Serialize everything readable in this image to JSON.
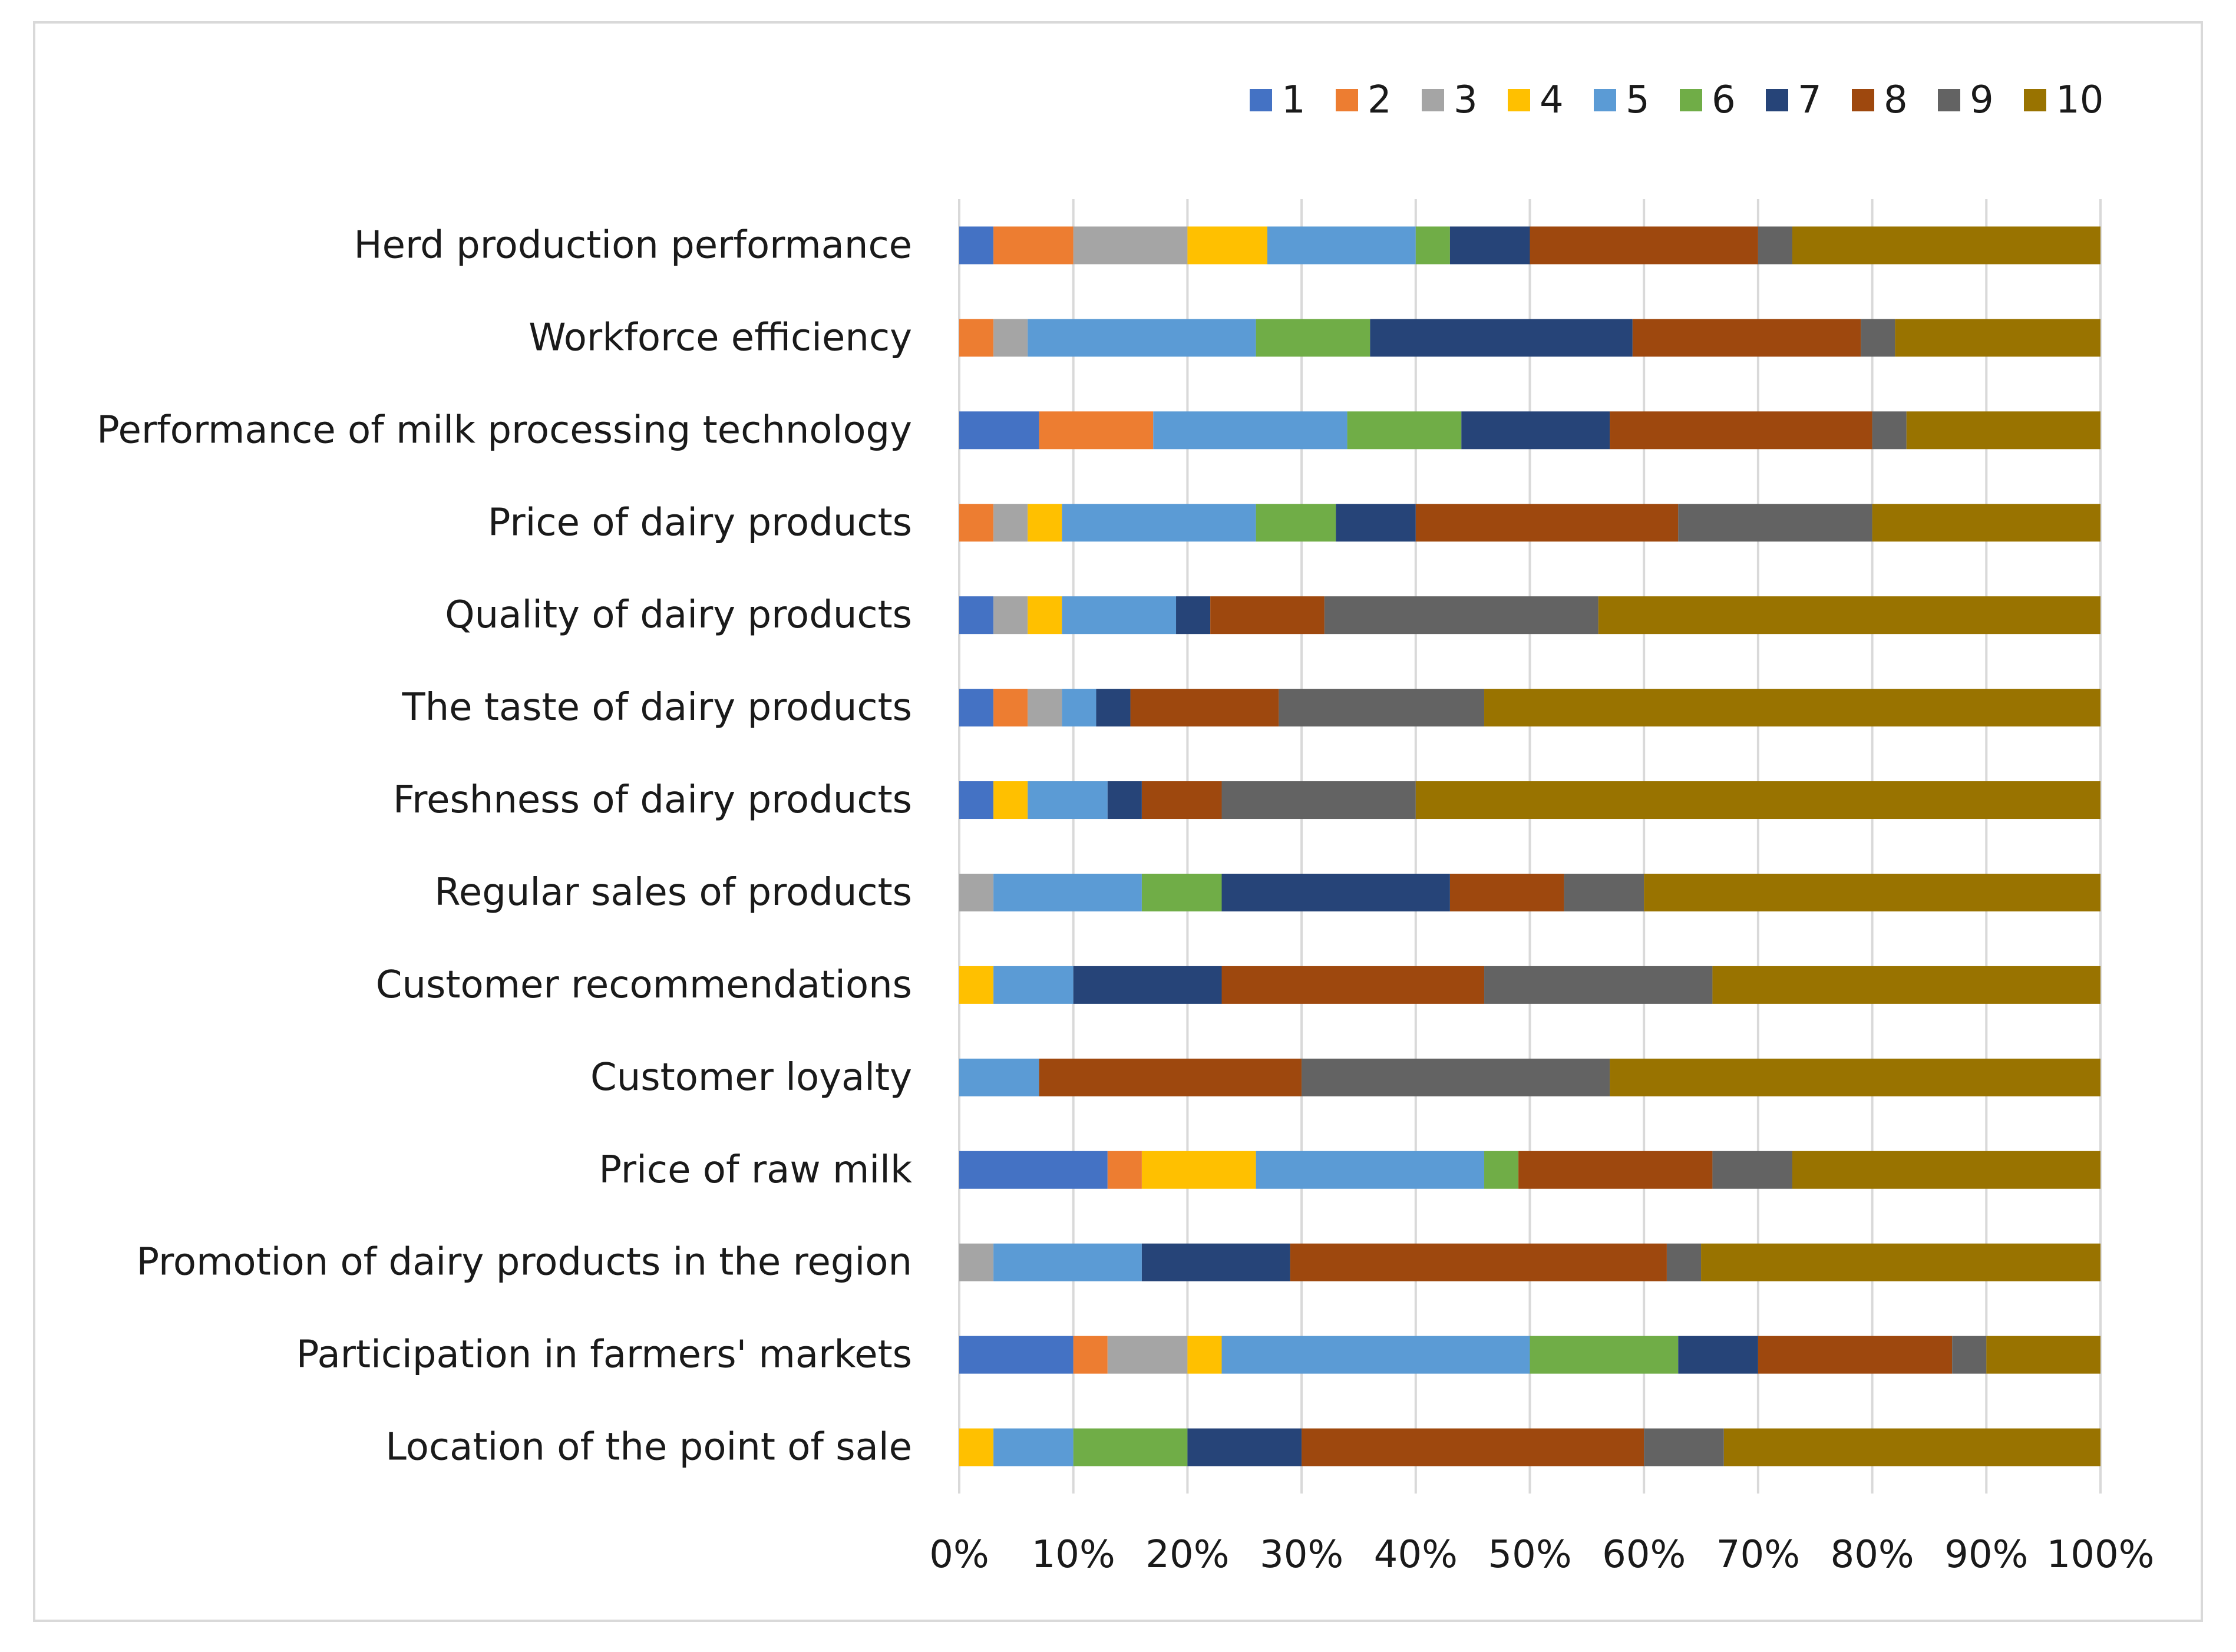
{
  "chart_data": {
    "type": "bar",
    "orientation": "horizontal",
    "stacked": "percent",
    "title": "",
    "xlabel": "",
    "ylabel": "",
    "xlim": [
      0,
      100
    ],
    "x_ticks": [
      "0%",
      "10%",
      "20%",
      "30%",
      "40%",
      "50%",
      "60%",
      "70%",
      "80%",
      "90%",
      "100%"
    ],
    "grid": true,
    "legend_position": "top-right",
    "categories": [
      "Herd production performance",
      "Workforce efficiency",
      "Performance of milk processing technology",
      "Price of dairy products",
      "Quality of dairy products",
      "The taste of dairy products",
      "Freshness of dairy products",
      "Regular sales of products",
      "Customer recommendations",
      "Customer loyalty",
      "Price of raw milk",
      "Promotion of dairy products in the region",
      "Participation in farmers' markets",
      "Location of the point of sale"
    ],
    "series": [
      {
        "name": "1",
        "color": "#4472C4",
        "values": [
          3,
          0,
          7,
          0,
          3,
          3,
          3,
          0,
          0,
          0,
          13,
          0,
          10,
          0
        ]
      },
      {
        "name": "2",
        "color": "#ED7D31",
        "values": [
          7,
          3,
          10,
          3,
          0,
          3,
          0,
          0,
          0,
          0,
          3,
          0,
          3,
          0
        ]
      },
      {
        "name": "3",
        "color": "#A5A5A5",
        "values": [
          10,
          3,
          0,
          3,
          3,
          3,
          0,
          3,
          0,
          0,
          0,
          3,
          7,
          0
        ]
      },
      {
        "name": "4",
        "color": "#FFC000",
        "values": [
          7,
          0,
          0,
          3,
          3,
          0,
          3,
          0,
          3,
          0,
          10,
          0,
          3,
          3
        ]
      },
      {
        "name": "5",
        "color": "#5B9BD5",
        "values": [
          13,
          20,
          17,
          17,
          10,
          3,
          7,
          13,
          7,
          7,
          20,
          13,
          27,
          7
        ]
      },
      {
        "name": "6",
        "color": "#70AD47",
        "values": [
          3,
          10,
          10,
          7,
          0,
          0,
          0,
          7,
          0,
          0,
          3,
          0,
          13,
          10
        ]
      },
      {
        "name": "7",
        "color": "#264478",
        "values": [
          7,
          23,
          13,
          7,
          3,
          3,
          3,
          20,
          13,
          0,
          0,
          13,
          7,
          10
        ]
      },
      {
        "name": "8",
        "color": "#9E480E",
        "values": [
          20,
          20,
          23,
          23,
          10,
          13,
          7,
          10,
          23,
          23,
          17,
          33,
          17,
          30
        ]
      },
      {
        "name": "9",
        "color": "#636363",
        "values": [
          3,
          3,
          3,
          17,
          24,
          18,
          17,
          7,
          20,
          27,
          7,
          3,
          3,
          7
        ]
      },
      {
        "name": "10",
        "color": "#997300",
        "values": [
          27,
          18,
          17,
          20,
          44,
          54,
          60,
          40,
          34,
          43,
          27,
          35,
          10,
          33
        ]
      }
    ]
  }
}
